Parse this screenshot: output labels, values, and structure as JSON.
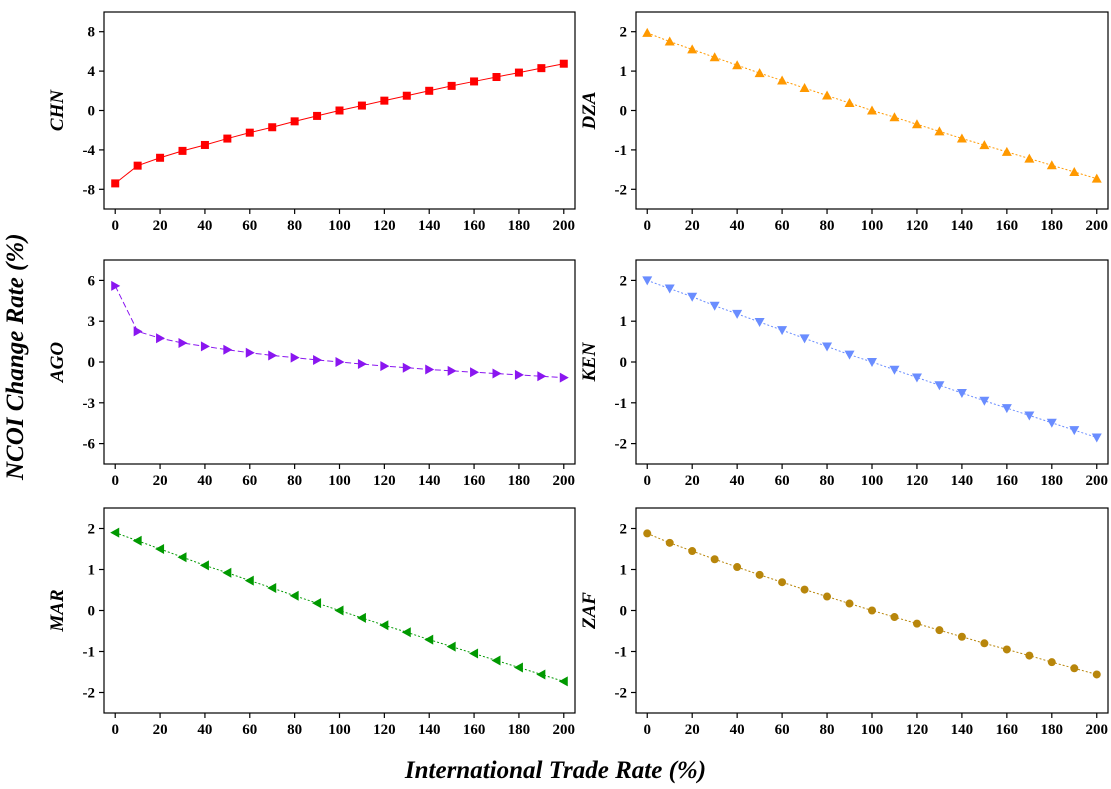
{
  "figure": {
    "xlabel": "International Trade Rate (%)",
    "ylabel": "NCOI Change Rate (%)"
  },
  "chart_data": [
    {
      "type": "line",
      "panel_label": "CHN",
      "color": "#ff0000",
      "marker": "square",
      "line_style": "solid",
      "x": [
        0,
        10,
        20,
        30,
        40,
        50,
        60,
        70,
        80,
        90,
        100,
        110,
        120,
        130,
        140,
        150,
        160,
        170,
        180,
        190,
        200
      ],
      "values": [
        -7.4,
        -5.6,
        -4.8,
        -4.1,
        -3.5,
        -2.85,
        -2.25,
        -1.7,
        -1.1,
        -0.55,
        0,
        0.5,
        1.0,
        1.5,
        2.0,
        2.5,
        2.95,
        3.4,
        3.85,
        4.3,
        4.75
      ],
      "xlim": [
        -5,
        205
      ],
      "ylim": [
        -10,
        10
      ],
      "xticks": [
        0,
        20,
        40,
        60,
        80,
        100,
        120,
        140,
        160,
        180,
        200
      ],
      "yticks": [
        -8,
        -4,
        0,
        4,
        8
      ],
      "ytick_labels": [
        "-8",
        "-4",
        "0",
        "4",
        "8"
      ]
    },
    {
      "type": "line",
      "panel_label": "DZA",
      "color": "#ff9900",
      "marker": "triangle-up",
      "line_style": "dotted",
      "x": [
        0,
        10,
        20,
        30,
        40,
        50,
        60,
        70,
        80,
        90,
        100,
        110,
        120,
        130,
        140,
        150,
        160,
        170,
        180,
        190,
        200
      ],
      "values": [
        1.97,
        1.75,
        1.55,
        1.35,
        1.15,
        0.95,
        0.76,
        0.57,
        0.38,
        0.19,
        0,
        -0.17,
        -0.35,
        -0.53,
        -0.71,
        -0.88,
        -1.05,
        -1.22,
        -1.39,
        -1.56,
        -1.73
      ],
      "xlim": [
        -5,
        205
      ],
      "ylim": [
        -2.5,
        2.5
      ],
      "xticks": [
        0,
        20,
        40,
        60,
        80,
        100,
        120,
        140,
        160,
        180,
        200
      ],
      "yticks": [
        -2,
        -1,
        0,
        1,
        2
      ],
      "ytick_labels": [
        "-2",
        "-1",
        "0",
        "1",
        "2"
      ]
    },
    {
      "type": "line",
      "panel_label": "AGO",
      "color": "#8a16f0",
      "marker": "triangle-right",
      "line_style": "dashed",
      "x": [
        0,
        10,
        20,
        30,
        40,
        50,
        60,
        70,
        80,
        90,
        100,
        110,
        120,
        130,
        140,
        150,
        160,
        170,
        180,
        190,
        200
      ],
      "values": [
        5.6,
        2.25,
        1.75,
        1.4,
        1.15,
        0.9,
        0.68,
        0.48,
        0.32,
        0.15,
        0,
        -0.15,
        -0.3,
        -0.42,
        -0.55,
        -0.65,
        -0.75,
        -0.85,
        -0.95,
        -1.05,
        -1.15
      ],
      "xlim": [
        -5,
        205
      ],
      "ylim": [
        -7.5,
        7.5
      ],
      "xticks": [
        0,
        20,
        40,
        60,
        80,
        100,
        120,
        140,
        160,
        180,
        200
      ],
      "yticks": [
        -6,
        -3,
        0,
        3,
        6
      ],
      "ytick_labels": [
        "-6",
        "-3",
        "0",
        "3",
        "6"
      ]
    },
    {
      "type": "line",
      "panel_label": "KEN",
      "color": "#6a8dff",
      "marker": "triangle-down",
      "line_style": "dotted",
      "x": [
        0,
        10,
        20,
        30,
        40,
        50,
        60,
        70,
        80,
        90,
        100,
        110,
        120,
        130,
        140,
        150,
        160,
        170,
        180,
        190,
        200
      ],
      "values": [
        2.0,
        1.8,
        1.6,
        1.38,
        1.18,
        0.98,
        0.78,
        0.58,
        0.38,
        0.18,
        0,
        -0.19,
        -0.38,
        -0.57,
        -0.76,
        -0.95,
        -1.13,
        -1.31,
        -1.49,
        -1.67,
        -1.85
      ],
      "xlim": [
        -5,
        205
      ],
      "ylim": [
        -2.5,
        2.5
      ],
      "xticks": [
        0,
        20,
        40,
        60,
        80,
        100,
        120,
        140,
        160,
        180,
        200
      ],
      "yticks": [
        -2,
        -1,
        0,
        1,
        2
      ],
      "ytick_labels": [
        "-2",
        "-1",
        "0",
        "1",
        "2"
      ]
    },
    {
      "type": "line",
      "panel_label": "MAR",
      "color": "#009900",
      "marker": "triangle-left",
      "line_style": "dotted",
      "x": [
        0,
        10,
        20,
        30,
        40,
        50,
        60,
        70,
        80,
        90,
        100,
        110,
        120,
        130,
        140,
        150,
        160,
        170,
        180,
        190,
        200
      ],
      "values": [
        1.9,
        1.7,
        1.5,
        1.3,
        1.1,
        0.92,
        0.73,
        0.55,
        0.36,
        0.18,
        0,
        -0.18,
        -0.36,
        -0.53,
        -0.71,
        -0.88,
        -1.05,
        -1.22,
        -1.39,
        -1.56,
        -1.73
      ],
      "xlim": [
        -5,
        205
      ],
      "ylim": [
        -2.5,
        2.5
      ],
      "xticks": [
        0,
        20,
        40,
        60,
        80,
        100,
        120,
        140,
        160,
        180,
        200
      ],
      "yticks": [
        -2,
        -1,
        0,
        1,
        2
      ],
      "ytick_labels": [
        "-2",
        "-1",
        "0",
        "1",
        "2"
      ]
    },
    {
      "type": "line",
      "panel_label": "ZAF",
      "color": "#b8860b",
      "marker": "circle",
      "line_style": "dotted",
      "x": [
        0,
        10,
        20,
        30,
        40,
        50,
        60,
        70,
        80,
        90,
        100,
        110,
        120,
        130,
        140,
        150,
        160,
        170,
        180,
        190,
        200
      ],
      "values": [
        1.88,
        1.65,
        1.45,
        1.25,
        1.06,
        0.87,
        0.69,
        0.51,
        0.34,
        0.17,
        0,
        -0.16,
        -0.32,
        -0.48,
        -0.64,
        -0.8,
        -0.95,
        -1.1,
        -1.26,
        -1.41,
        -1.56
      ],
      "xlim": [
        -5,
        205
      ],
      "ylim": [
        -2.5,
        2.5
      ],
      "xticks": [
        0,
        20,
        40,
        60,
        80,
        100,
        120,
        140,
        160,
        180,
        200
      ],
      "yticks": [
        -2,
        -1,
        0,
        1,
        2
      ],
      "ytick_labels": [
        "-2",
        "-1",
        "0",
        "1",
        "2"
      ]
    }
  ]
}
